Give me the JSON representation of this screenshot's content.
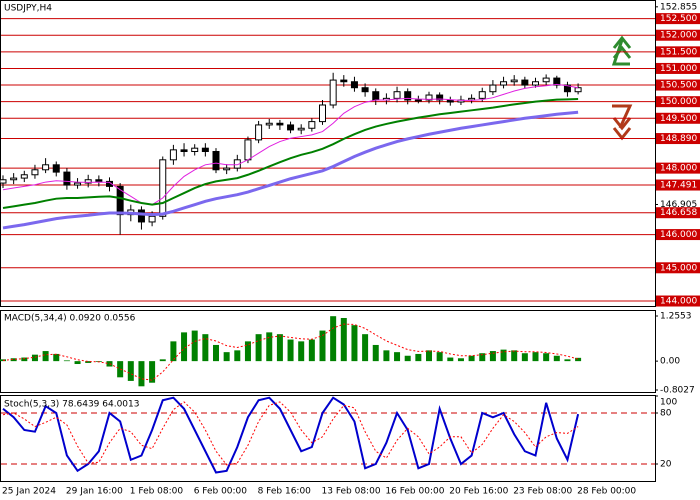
{
  "chart_data": [
    {
      "type": "candlestick",
      "title": "USDJPY,H4",
      "categories": [
        "25 Jan 2024",
        null,
        null,
        null,
        null,
        null,
        "29 Jan 16:00",
        null,
        null,
        null,
        null,
        null,
        "1 Feb 08:00",
        null,
        null,
        null,
        null,
        null,
        "6 Feb 00:00",
        null,
        null,
        null,
        null,
        null,
        "8 Feb 16:00",
        null,
        null,
        null,
        null,
        null,
        "13 Feb 08:00",
        null,
        null,
        null,
        null,
        null,
        "16 Feb 00:00",
        null,
        null,
        null,
        null,
        null,
        "20 Feb 16:00",
        null,
        null,
        null,
        null,
        null,
        "23 Feb 08:00",
        null,
        null,
        null,
        null,
        null,
        "28 Feb 00:00"
      ],
      "open": [
        147.55,
        147.65,
        147.7,
        147.8,
        147.95,
        148.1,
        147.88,
        147.49,
        147.55,
        147.65,
        147.6,
        147.45,
        146.6,
        146.74,
        146.38,
        146.55,
        148.25,
        148.55,
        148.5,
        148.6,
        148.5,
        147.95,
        148.0,
        148.25,
        148.85,
        149.3,
        149.35,
        149.3,
        149.15,
        149.2,
        149.4,
        149.9,
        150.65,
        150.6,
        150.42,
        150.3,
        150.05,
        150.1,
        150.3,
        150.05,
        150.05,
        150.2,
        150.05,
        149.99,
        150.05,
        150.1,
        150.3,
        150.5,
        150.6,
        150.65,
        150.5,
        150.6,
        150.71,
        150.5,
        150.3
      ],
      "high": [
        147.78,
        147.85,
        147.92,
        148.1,
        148.3,
        148.2,
        148.0,
        147.7,
        147.8,
        147.78,
        147.72,
        147.55,
        146.9,
        146.85,
        146.7,
        148.35,
        148.7,
        148.75,
        148.72,
        148.75,
        148.6,
        148.12,
        148.4,
        148.95,
        149.42,
        149.48,
        149.45,
        149.4,
        149.32,
        149.5,
        150.05,
        150.87,
        150.8,
        150.75,
        150.55,
        150.4,
        150.25,
        150.45,
        150.4,
        150.18,
        150.3,
        150.28,
        150.15,
        150.18,
        150.22,
        150.42,
        150.65,
        150.75,
        150.8,
        150.75,
        150.72,
        150.82,
        150.78,
        150.6,
        150.55
      ],
      "low": [
        147.4,
        147.52,
        147.58,
        147.68,
        147.85,
        147.75,
        147.35,
        147.38,
        147.42,
        147.45,
        147.3,
        146.0,
        146.4,
        146.15,
        146.25,
        146.45,
        148.1,
        148.35,
        148.38,
        148.35,
        147.85,
        147.82,
        147.9,
        148.15,
        148.75,
        149.18,
        149.15,
        149.05,
        149.02,
        149.1,
        149.3,
        149.8,
        150.45,
        150.3,
        150.15,
        149.9,
        149.92,
        149.98,
        149.92,
        149.95,
        149.95,
        149.92,
        149.88,
        149.9,
        149.95,
        150.0,
        150.2,
        150.4,
        150.48,
        150.4,
        150.42,
        150.5,
        150.4,
        150.15,
        150.22
      ],
      "close": [
        147.65,
        147.7,
        147.8,
        147.95,
        148.1,
        147.88,
        147.49,
        147.55,
        147.65,
        147.6,
        147.45,
        146.6,
        146.74,
        146.38,
        146.55,
        148.25,
        148.55,
        148.5,
        148.6,
        148.5,
        147.95,
        148.0,
        148.25,
        148.85,
        149.3,
        149.35,
        149.3,
        149.15,
        149.2,
        149.4,
        149.9,
        150.65,
        150.6,
        150.42,
        150.3,
        150.05,
        150.1,
        150.3,
        150.05,
        150.05,
        150.2,
        150.05,
        149.99,
        150.05,
        150.1,
        150.3,
        150.5,
        150.6,
        150.65,
        150.5,
        150.6,
        150.71,
        150.5,
        150.3,
        150.42
      ],
      "up_color": "#ffffff",
      "down_color": "#000000",
      "outline_color": "#000000",
      "series": [
        {
          "color": "#e020e0",
          "width": 1,
          "values": [
            147.35,
            147.4,
            147.45,
            147.5,
            147.58,
            147.62,
            147.6,
            147.58,
            147.57,
            147.58,
            147.57,
            147.35,
            147.15,
            146.95,
            146.9,
            147.1,
            147.45,
            147.75,
            147.95,
            148.1,
            148.15,
            148.1,
            148.1,
            148.25,
            148.45,
            148.65,
            148.8,
            148.9,
            148.95,
            149.0,
            149.1,
            149.35,
            149.65,
            149.85,
            149.98,
            150.05,
            150.05,
            150.08,
            150.1,
            150.08,
            150.07,
            150.08,
            150.06,
            150.04,
            150.04,
            150.06,
            150.12,
            150.22,
            150.32,
            150.4,
            150.45,
            150.48,
            150.52,
            150.48,
            150.42
          ]
        },
        {
          "color": "#008000",
          "width": 2,
          "values": [
            146.8,
            146.85,
            146.9,
            146.95,
            147.02,
            147.08,
            147.1,
            147.1,
            147.12,
            147.14,
            147.15,
            147.1,
            147.02,
            146.95,
            146.9,
            146.95,
            147.1,
            147.25,
            147.4,
            147.52,
            147.6,
            147.65,
            147.7,
            147.8,
            147.92,
            148.05,
            148.18,
            148.3,
            148.4,
            148.48,
            148.58,
            148.72,
            148.88,
            149.02,
            149.15,
            149.25,
            149.33,
            149.4,
            149.46,
            149.52,
            149.57,
            149.62,
            149.66,
            149.7,
            149.74,
            149.78,
            149.82,
            149.87,
            149.92,
            149.96,
            150.0,
            150.03,
            150.06,
            150.07,
            150.08
          ]
        },
        {
          "color": "#7b68ee",
          "width": 3,
          "values": [
            146.2,
            146.25,
            146.3,
            146.36,
            146.42,
            146.48,
            146.52,
            146.55,
            146.58,
            146.62,
            146.65,
            146.65,
            146.64,
            146.62,
            146.6,
            146.62,
            146.7,
            146.8,
            146.9,
            147.0,
            147.08,
            147.14,
            147.2,
            147.28,
            147.38,
            147.48,
            147.58,
            147.68,
            147.76,
            147.84,
            147.92,
            148.05,
            148.2,
            148.35,
            148.48,
            148.6,
            148.7,
            148.8,
            148.88,
            148.95,
            149.02,
            149.08,
            149.14,
            149.2,
            149.25,
            149.3,
            149.35,
            149.4,
            149.45,
            149.5,
            149.54,
            149.58,
            149.62,
            149.65,
            149.68
          ]
        }
      ],
      "ylim": [
        143.85,
        153.0
      ],
      "yticks": [
        152.855,
        146.905
      ],
      "levels": [
        {
          "value": 152.5,
          "label": "152.500"
        },
        {
          "value": 152,
          "label": "152.000"
        },
        {
          "value": 151.5,
          "label": "151.500"
        },
        {
          "value": 151,
          "label": "151.000"
        },
        {
          "value": 150.5,
          "label": "150.500"
        },
        {
          "value": 150,
          "label": "150.000"
        },
        {
          "value": 149.5,
          "label": "149.500"
        },
        {
          "value": 148.89,
          "label": "148.890"
        },
        {
          "value": 148,
          "label": "148.000"
        },
        147.491,
        146.658,
        {
          "value": 146,
          "label": "146.000"
        },
        {
          "value": 145,
          "label": "145.000"
        },
        {
          "value": 144,
          "label": "144.000"
        }
      ],
      "level_color": "#cc0000"
    },
    {
      "type": "macd",
      "title": "MACD(5,34,4) 0.0920 0.0556",
      "values": [
        0.05,
        0.08,
        0.1,
        0.18,
        0.28,
        0.2,
        0.02,
        -0.08,
        -0.05,
        -0.02,
        -0.15,
        -0.45,
        -0.55,
        -0.7,
        -0.6,
        0.05,
        0.55,
        0.8,
        0.85,
        0.75,
        0.45,
        0.25,
        0.3,
        0.55,
        0.75,
        0.8,
        0.75,
        0.6,
        0.55,
        0.6,
        0.85,
        1.25,
        1.2,
        1.0,
        0.75,
        0.45,
        0.3,
        0.25,
        0.15,
        0.2,
        0.3,
        0.25,
        0.1,
        0.08,
        0.15,
        0.22,
        0.28,
        0.32,
        0.3,
        0.22,
        0.25,
        0.22,
        0.15,
        0.05,
        0.092
      ],
      "color": "#008000",
      "signal": {
        "color": "#ff0000",
        "values": [
          0.02,
          0.05,
          0.07,
          0.11,
          0.18,
          0.19,
          0.12,
          0.04,
          -0.01,
          -0.02,
          -0.07,
          -0.22,
          -0.35,
          -0.49,
          -0.53,
          -0.3,
          0.04,
          0.35,
          0.55,
          0.63,
          0.56,
          0.43,
          0.38,
          0.45,
          0.57,
          0.66,
          0.7,
          0.66,
          0.62,
          0.61,
          0.71,
          0.92,
          1.03,
          1.02,
          0.91,
          0.73,
          0.56,
          0.44,
          0.32,
          0.27,
          0.28,
          0.27,
          0.2,
          0.15,
          0.15,
          0.18,
          0.22,
          0.26,
          0.28,
          0.26,
          0.26,
          0.24,
          0.2,
          0.14,
          0.0556
        ]
      },
      "ylim": [
        -0.8027,
        1.2553
      ],
      "yticks": [
        1.2553,
        {
          "value": 0,
          "label": "0.00"
        },
        -0.8027
      ]
    },
    {
      "type": "stochastic",
      "title": "Stoch(5,3,3) 78.6439 64.0013",
      "series": [
        {
          "color": "#0000cd",
          "width": 2,
          "values": [
            85,
            75,
            60,
            58,
            88,
            80,
            30,
            12,
            20,
            35,
            80,
            70,
            25,
            30,
            60,
            95,
            98,
            85,
            60,
            35,
            10,
            12,
            40,
            75,
            95,
            98,
            85,
            60,
            35,
            40,
            80,
            98,
            90,
            70,
            15,
            20,
            45,
            80,
            60,
            15,
            20,
            85,
            50,
            20,
            30,
            80,
            75,
            80,
            55,
            35,
            30,
            92,
            50,
            25,
            78.6439
          ]
        },
        {
          "color": "#ff0000",
          "width": 1,
          "dashed": true,
          "values": [
            78,
            80,
            73,
            64,
            69,
            75,
            66,
            41,
            21,
            22,
            45,
            62,
            58,
            42,
            38,
            62,
            84,
            93,
            81,
            60,
            35,
            19,
            21,
            42,
            70,
            89,
            93,
            81,
            60,
            45,
            52,
            73,
            89,
            86,
            58,
            35,
            27,
            48,
            62,
            52,
            32,
            40,
            52,
            52,
            33,
            43,
            62,
            78,
            70,
            57,
            40,
            52,
            57,
            56,
            64.0013
          ]
        }
      ],
      "ylim": [
        0,
        100
      ],
      "yticks": [
        100,
        80,
        20
      ],
      "levels": [
        80,
        20
      ],
      "level_color": "#cc0000"
    }
  ]
}
